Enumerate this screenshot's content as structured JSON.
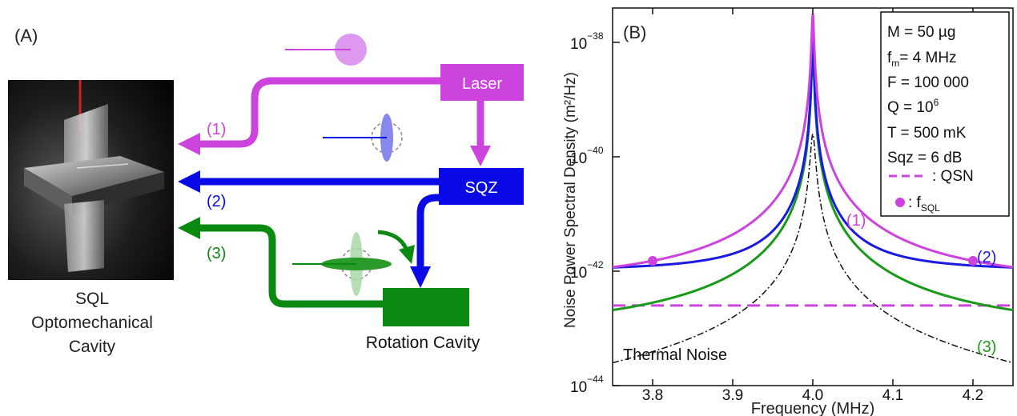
{
  "panel_a": {
    "label": "(A)",
    "cavity_label": [
      "SQL",
      "Optomechanical",
      "Cavity"
    ],
    "boxes": {
      "laser": {
        "label": "Laser",
        "color": "#cc44dd"
      },
      "sqz": {
        "label": "SQZ",
        "color": "#0a0ae6"
      },
      "rotation": {
        "label": "Rotation Cavity",
        "color": "#0b8a12"
      }
    },
    "beams": [
      {
        "label": "(1)",
        "color": "#cc44dd"
      },
      {
        "label": "(2)",
        "color": "#0a0ae6"
      },
      {
        "label": "(3)",
        "color": "#0b8a12"
      }
    ]
  },
  "panel_b": {
    "label": "(B)",
    "legend": {
      "lines": [
        "M = 50 µg",
        "Q = 10",
        "T = 500 mK",
        "Sqz = 6 dB",
        "F = 100 000",
        ": QSN",
        "= 4 MHz"
      ],
      "fm_prefix": "f",
      "fm_sub": "m",
      "q_sup": "6",
      "fsql_prefix": ": f",
      "fsql_sub": "SQL"
    },
    "thermal_label": "Thermal Noise"
  },
  "chart_data": {
    "type": "line",
    "xlabel": "Frequency (MHz)",
    "ylabel": "Noise Power Spectral Density (m²/Hz)",
    "xlim": [
      3.75,
      4.25
    ],
    "ylim_log10": [
      -44,
      -37.4
    ],
    "x_ticks": [
      "3.8",
      "3.9",
      "4.0",
      "4.1",
      "4.2"
    ],
    "y_ticks": [
      {
        "base": "10",
        "exp": "−38"
      },
      {
        "base": "10",
        "exp": "−40"
      },
      {
        "base": "10",
        "exp": "−42"
      },
      {
        "base": "10",
        "exp": "−44"
      }
    ],
    "series": [
      {
        "name": "(1)",
        "color": "#cc44dd"
      },
      {
        "name": "(2)",
        "color": "#1a1ae0"
      },
      {
        "name": "(3)",
        "color": "#1a9a1a"
      }
    ],
    "qsn_color": "#cc44dd",
    "sql_points_x": [
      3.8,
      4.2
    ]
  }
}
